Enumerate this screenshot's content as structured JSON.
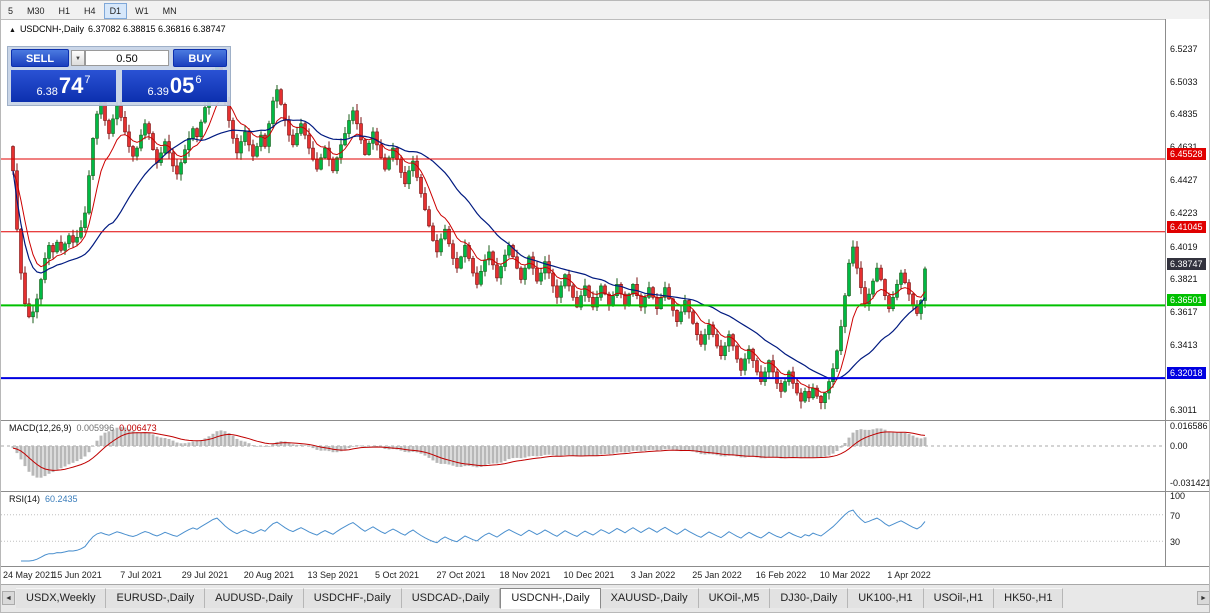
{
  "toolbar": {
    "timeframes": [
      "5",
      "M30",
      "H1",
      "H4",
      "D1",
      "W1",
      "MN"
    ],
    "active": "D1"
  },
  "chart_header": {
    "icon": "▲",
    "symbol": "USDCNH-,Daily",
    "ohlc": "6.37082 6.38815 6.36816 6.38747"
  },
  "trade_panel": {
    "sell_label": "SELL",
    "buy_label": "BUY",
    "lot_value": "0.50",
    "spinner_icon": "▼",
    "sell_price": {
      "prefix": "6.38",
      "big": "74",
      "sup": "7"
    },
    "buy_price": {
      "prefix": "6.39",
      "big": "05",
      "sup": "6"
    }
  },
  "price_axis": {
    "ticks": [
      "6.5237",
      "6.5033",
      "6.4835",
      "6.4631",
      "6.4427",
      "6.4223",
      "6.4019",
      "6.3821",
      "6.3617",
      "6.3413",
      "6.3011"
    ],
    "badges": [
      {
        "label": "6.45528",
        "color": "#e00000"
      },
      {
        "label": "6.41045",
        "color": "#e00000"
      },
      {
        "label": "6.38747",
        "color": "#32323e"
      },
      {
        "label": "6.36501",
        "color": "#00c000"
      },
      {
        "label": "6.32018",
        "color": "#0000e0"
      }
    ]
  },
  "chart_data": {
    "type": "candlestick",
    "symbol": "USDCNH-,Daily",
    "timeframe": "Daily",
    "x_labels": [
      "24 May 2021",
      "15 Jun 2021",
      "7 Jul 2021",
      "29 Jul 2021",
      "20 Aug 2021",
      "13 Sep 2021",
      "5 Oct 2021",
      "27 Oct 2021",
      "18 Nov 2021",
      "10 Dec 2021",
      "3 Jan 2022",
      "25 Jan 2022",
      "16 Feb 2022",
      "10 Mar 2022",
      "1 Apr 2022"
    ],
    "candles_per_label": 16,
    "first_open": 6.463,
    "closes": [
      6.448,
      6.412,
      6.385,
      6.366,
      6.358,
      6.361,
      6.369,
      6.381,
      6.394,
      6.402,
      6.398,
      6.404,
      6.399,
      6.403,
      6.408,
      6.404,
      6.407,
      6.413,
      6.422,
      6.445,
      6.468,
      6.483,
      6.49,
      6.479,
      6.471,
      6.48,
      6.488,
      6.481,
      6.472,
      6.463,
      6.457,
      6.462,
      6.47,
      6.477,
      6.471,
      6.461,
      6.453,
      6.459,
      6.466,
      6.459,
      6.451,
      6.446,
      6.453,
      6.461,
      6.468,
      6.474,
      6.469,
      6.478,
      6.487,
      6.497,
      6.508,
      6.515,
      6.504,
      6.491,
      6.479,
      6.468,
      6.459,
      6.466,
      6.472,
      6.464,
      6.457,
      6.463,
      6.47,
      6.463,
      6.477,
      6.491,
      6.498,
      6.489,
      6.479,
      6.47,
      6.464,
      6.471,
      6.477,
      6.47,
      6.462,
      6.455,
      6.449,
      6.456,
      6.462,
      6.455,
      6.448,
      6.456,
      6.464,
      6.471,
      6.479,
      6.485,
      6.477,
      6.467,
      6.458,
      6.465,
      6.472,
      6.464,
      6.456,
      6.449,
      6.456,
      6.462,
      6.455,
      6.447,
      6.44,
      6.448,
      6.454,
      6.444,
      6.434,
      6.424,
      6.414,
      6.405,
      6.398,
      6.406,
      6.412,
      6.403,
      6.394,
      6.388,
      6.395,
      6.402,
      6.394,
      6.385,
      6.378,
      6.386,
      6.393,
      6.398,
      6.39,
      6.382,
      6.389,
      6.396,
      6.402,
      6.395,
      6.388,
      6.381,
      6.388,
      6.395,
      6.388,
      6.38,
      6.385,
      6.392,
      6.385,
      6.377,
      6.37,
      6.377,
      6.384,
      6.377,
      6.37,
      6.364,
      6.371,
      6.377,
      6.37,
      6.364,
      6.37,
      6.377,
      6.372,
      6.365,
      6.371,
      6.378,
      6.372,
      6.365,
      6.372,
      6.378,
      6.371,
      6.364,
      6.37,
      6.376,
      6.37,
      6.363,
      6.37,
      6.376,
      6.369,
      6.362,
      6.355,
      6.361,
      6.368,
      6.361,
      6.354,
      6.347,
      6.341,
      6.347,
      6.353,
      6.347,
      6.34,
      6.334,
      6.34,
      6.347,
      6.34,
      6.332,
      6.325,
      6.332,
      6.338,
      6.331,
      6.324,
      6.318,
      6.324,
      6.331,
      6.324,
      6.317,
      6.312,
      6.318,
      6.324,
      6.317,
      6.311,
      6.306,
      6.312,
      6.308,
      6.314,
      6.309,
      6.305,
      6.311,
      6.318,
      6.326,
      6.337,
      6.352,
      6.371,
      6.391,
      6.401,
      6.388,
      6.376,
      6.366,
      6.372,
      6.38,
      6.388,
      6.381,
      6.371,
      6.363,
      6.37,
      6.378,
      6.385,
      6.379,
      6.372,
      6.365,
      6.36,
      6.368,
      6.3875
    ],
    "levels": [
      {
        "price": 6.45528,
        "color": "#e00000",
        "width": 1
      },
      {
        "price": 6.41045,
        "color": "#e00000",
        "width": 1
      },
      {
        "price": 6.36501,
        "color": "#00c000",
        "width": 2
      },
      {
        "price": 6.32018,
        "color": "#0000e0",
        "width": 2
      }
    ],
    "up_color": "#00b944",
    "up_edge": "#1a5c1a",
    "down_color": "#e53030",
    "down_edge": "#7a1010",
    "ma_fast_color": "#cc0000",
    "ma_slow_color": "#001a80"
  },
  "indicators": {
    "macd": {
      "name": "MACD(12,26,9)",
      "value_main": "0.005996",
      "value_signal": "0.006473",
      "axis": [
        "0.016586",
        "0.00",
        "-0.031421"
      ],
      "hist_color": "#b8b8b8",
      "signal_color": "#c00000"
    },
    "rsi": {
      "name": "RSI(14)",
      "value": "60.2435",
      "axis": [
        "100",
        "70",
        "30"
      ],
      "line_color": "#4a8fce"
    }
  },
  "tabs": {
    "left_arrow_icon": "◄",
    "right_arrow_icon": "►",
    "items": [
      "USDX,Weekly",
      "EURUSD-,Daily",
      "AUDUSD-,Daily",
      "USDCHF-,Daily",
      "USDCAD-,Daily",
      "USDCNH-,Daily",
      "XAUUSD-,Daily",
      "UKOil-,M5",
      "DJ30-,Daily",
      "UK100-,H1",
      "USOil-,H1",
      "HK50-,H1"
    ],
    "active_index": 5
  }
}
